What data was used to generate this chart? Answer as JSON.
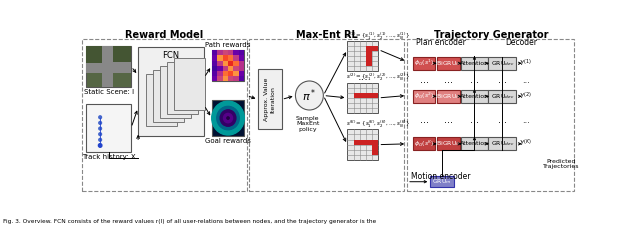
{
  "title_reward": "Reward Model",
  "title_maxent": "Max-Ent RL",
  "title_traj": "Trajectory Generator",
  "caption": "Fig. 3. Overview. FCN consists of the reward values r(I) of all user-relations between nodes, and the trajectory generator is the",
  "bg_color": "#ffffff",
  "pink_dark": "#C8504A",
  "pink_light": "#E89090",
  "blue_med": "#8080C8",
  "gray_box": "#C8C8C8",
  "gray_light": "#E0E0E0",
  "label_fs": 6,
  "small_fs": 5
}
